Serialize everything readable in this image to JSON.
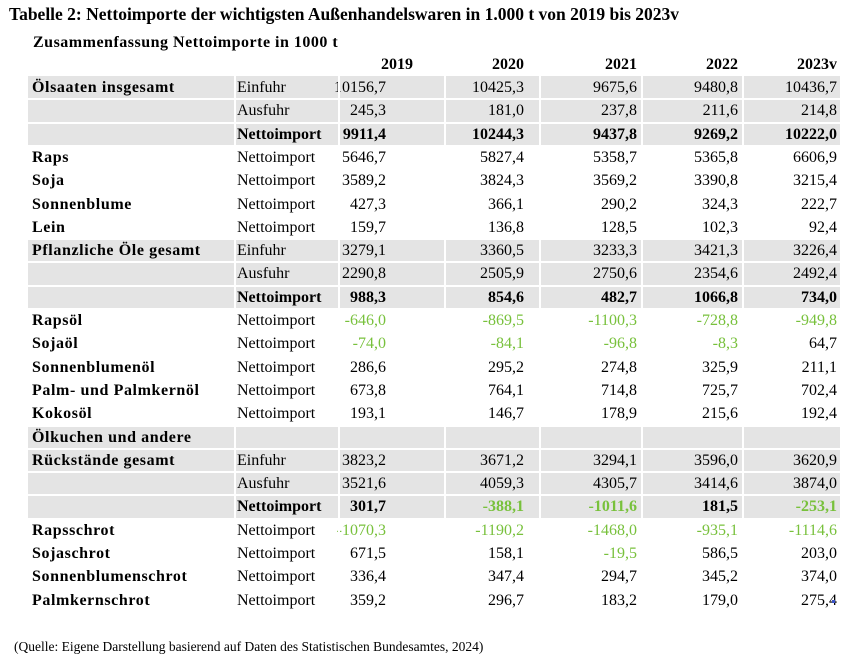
{
  "title": "Tabelle 2: Nettoimporte der wichtigsten Außenhandelswaren in 1.000 t von 2019 bis 2023v",
  "subtitle": "Zusammenfassung Nettoimporte in 1000 t",
  "years": [
    "2019",
    "2020",
    "2021",
    "2022",
    "2023v"
  ],
  "rows": [
    {
      "label": "Ölsaaten insgesamt",
      "type": "Einfuhr",
      "values": [
        "10156,7",
        "10425,3",
        "9675,6",
        "9480,8",
        "10436,7"
      ],
      "negative": [
        false,
        false,
        false,
        false,
        false
      ],
      "bold": false,
      "shaded": true
    },
    {
      "label": "",
      "type": "Ausfuhr",
      "values": [
        "245,3",
        "181,0",
        "237,8",
        "211,6",
        "214,8"
      ],
      "negative": [
        false,
        false,
        false,
        false,
        false
      ],
      "bold": false,
      "shaded": true
    },
    {
      "label": "",
      "type": "Nettoimport",
      "values": [
        "9911,4",
        "10244,3",
        "9437,8",
        "9269,2",
        "10222,0"
      ],
      "negative": [
        false,
        false,
        false,
        false,
        false
      ],
      "bold": true,
      "shaded": true
    },
    {
      "label": "Raps",
      "type": "Nettoimport",
      "values": [
        "5646,7",
        "5827,4",
        "5358,7",
        "5365,8",
        "6606,9"
      ],
      "negative": [
        false,
        false,
        false,
        false,
        false
      ],
      "bold": false,
      "shaded": false
    },
    {
      "label": "Soja",
      "type": "Nettoimport",
      "values": [
        "3589,2",
        "3824,3",
        "3569,2",
        "3390,8",
        "3215,4"
      ],
      "negative": [
        false,
        false,
        false,
        false,
        false
      ],
      "bold": false,
      "shaded": false
    },
    {
      "label": "Sonnenblume",
      "type": "Nettoimport",
      "values": [
        "427,3",
        "366,1",
        "290,2",
        "324,3",
        "222,7"
      ],
      "negative": [
        false,
        false,
        false,
        false,
        false
      ],
      "bold": false,
      "shaded": false
    },
    {
      "label": "Lein",
      "type": "Nettoimport",
      "values": [
        "159,7",
        "136,8",
        "128,5",
        "102,3",
        "92,4"
      ],
      "negative": [
        false,
        false,
        false,
        false,
        false
      ],
      "bold": false,
      "shaded": false
    },
    {
      "label": "Pflanzliche Öle gesamt",
      "type": "Einfuhr",
      "values": [
        "3279,1",
        "3360,5",
        "3233,3",
        "3421,3",
        "3226,4"
      ],
      "negative": [
        false,
        false,
        false,
        false,
        false
      ],
      "bold": false,
      "shaded": true
    },
    {
      "label": "",
      "type": "Ausfuhr",
      "values": [
        "2290,8",
        "2505,9",
        "2750,6",
        "2354,6",
        "2492,4"
      ],
      "negative": [
        false,
        false,
        false,
        false,
        false
      ],
      "bold": false,
      "shaded": true
    },
    {
      "label": "",
      "type": "Nettoimport",
      "values": [
        "988,3",
        "854,6",
        "482,7",
        "1066,8",
        "734,0"
      ],
      "negative": [
        false,
        false,
        false,
        false,
        false
      ],
      "bold": true,
      "shaded": true
    },
    {
      "label": "Rapsöl",
      "type": "Nettoimport",
      "values": [
        "-646,0",
        "-869,5",
        "-1100,3",
        "-728,8",
        "-949,8"
      ],
      "negative": [
        true,
        true,
        true,
        true,
        true
      ],
      "bold": false,
      "shaded": false
    },
    {
      "label": "Sojaöl",
      "type": "Nettoimport",
      "values": [
        "-74,0",
        "-84,1",
        "-96,8",
        "-8,3",
        "64,7"
      ],
      "negative": [
        true,
        true,
        true,
        true,
        false
      ],
      "bold": false,
      "shaded": false
    },
    {
      "label": "Sonnenblumenöl",
      "type": "Nettoimport",
      "values": [
        "286,6",
        "295,2",
        "274,8",
        "325,9",
        "211,1"
      ],
      "negative": [
        false,
        false,
        false,
        false,
        false
      ],
      "bold": false,
      "shaded": false
    },
    {
      "label": "Palm- und Palmkernöl",
      "type": "Nettoimport",
      "values": [
        "673,8",
        "764,1",
        "714,8",
        "725,7",
        "702,4"
      ],
      "negative": [
        false,
        false,
        false,
        false,
        false
      ],
      "bold": false,
      "shaded": false
    },
    {
      "label": "Kokosöl",
      "type": "Nettoimport",
      "values": [
        "193,1",
        "146,7",
        "178,9",
        "215,6",
        "192,4"
      ],
      "negative": [
        false,
        false,
        false,
        false,
        false
      ],
      "bold": false,
      "shaded": false
    },
    {
      "label": "Ölkuchen und andere",
      "type": "",
      "values": [
        "",
        "",
        "",
        "",
        ""
      ],
      "negative": [
        false,
        false,
        false,
        false,
        false
      ],
      "bold": false,
      "shaded": true
    },
    {
      "label": "Rückstände gesamt",
      "type": "Einfuhr",
      "values": [
        "3823,2",
        "3671,2",
        "3294,1",
        "3596,0",
        "3620,9"
      ],
      "negative": [
        false,
        false,
        false,
        false,
        false
      ],
      "bold": false,
      "shaded": true
    },
    {
      "label": "",
      "type": "Ausfuhr",
      "values": [
        "3521,6",
        "4059,3",
        "4305,7",
        "3414,6",
        "3874,0"
      ],
      "negative": [
        false,
        false,
        false,
        false,
        false
      ],
      "bold": false,
      "shaded": true
    },
    {
      "label": "",
      "type": "Nettoimport",
      "values": [
        "301,7",
        "-388,1",
        "-1011,6",
        "181,5",
        "-253,1"
      ],
      "negative": [
        false,
        true,
        true,
        false,
        true
      ],
      "bold": true,
      "shaded": true
    },
    {
      "label": "Rapsschrot",
      "type": "Nettoimport",
      "values": [
        "-1070,3",
        "-1190,2",
        "-1468,0",
        "-935,1",
        "-1114,6"
      ],
      "negative": [
        true,
        true,
        true,
        true,
        true
      ],
      "bold": false,
      "shaded": false
    },
    {
      "label": "Sojaschrot",
      "type": "Nettoimport",
      "values": [
        "671,5",
        "158,1",
        "-19,5",
        "586,5",
        "203,0"
      ],
      "negative": [
        false,
        false,
        true,
        false,
        false
      ],
      "bold": false,
      "shaded": false
    },
    {
      "label": "Sonnenblumenschrot",
      "type": "Nettoimport",
      "values": [
        "336,4",
        "347,4",
        "294,7",
        "345,2",
        "374,0"
      ],
      "negative": [
        false,
        false,
        false,
        false,
        false
      ],
      "bold": false,
      "shaded": false
    },
    {
      "label": "Palmkernschrot",
      "type": "Nettoimport",
      "values": [
        "359,2",
        "296,7",
        "183,2",
        "179,0",
        "275,4"
      ],
      "negative": [
        false,
        false,
        false,
        false,
        false
      ],
      "bold": false,
      "shaded": false
    }
  ],
  "source": "(Quelle: Eigene Darstellung basierend auf Daten des Statistischen Bundesamtes, 2024)",
  "colors": {
    "negative": "#78c13c",
    "shade": "#e4e4e4"
  }
}
